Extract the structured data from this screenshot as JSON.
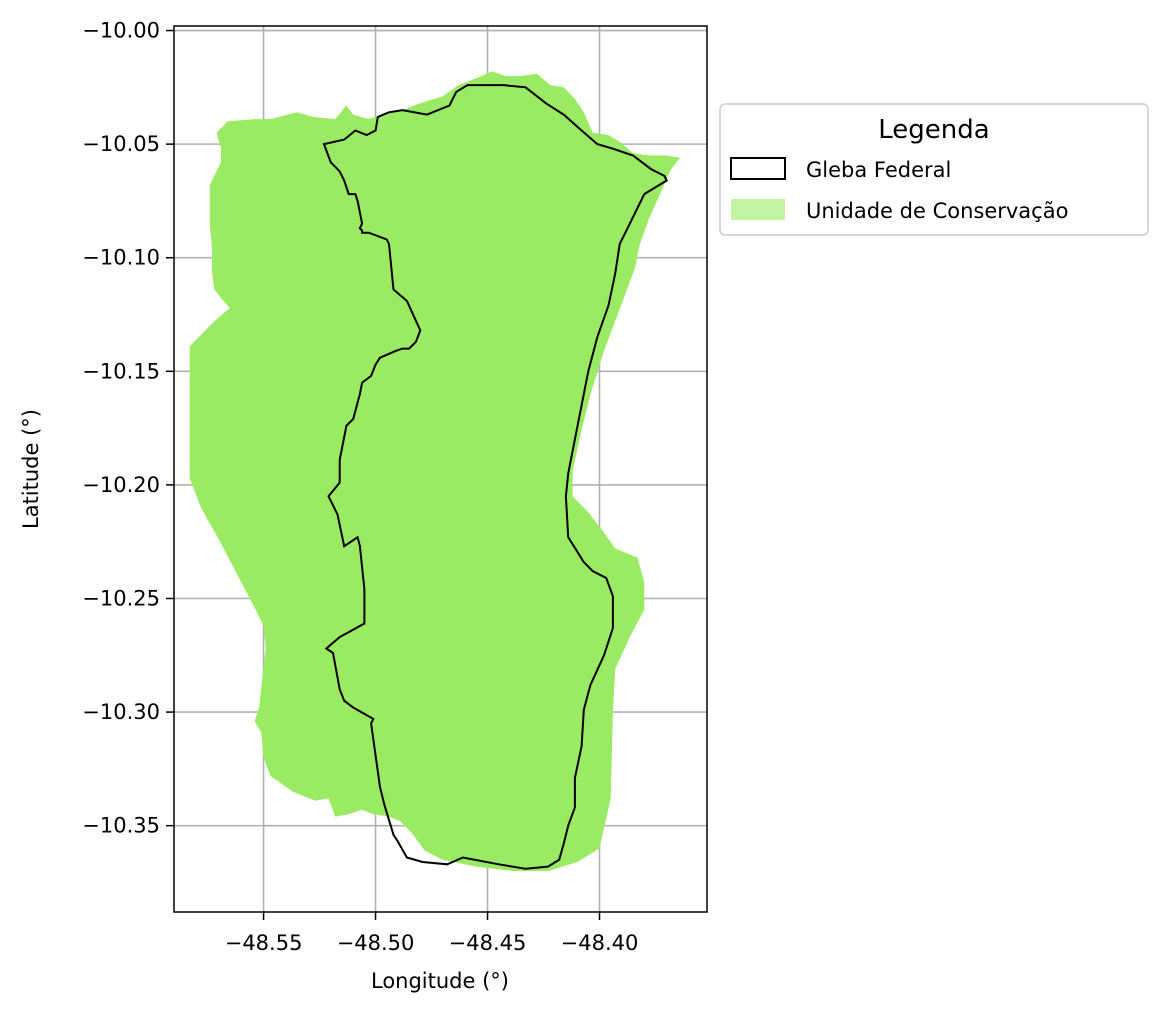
{
  "map": {
    "xlabel": "Longitude (°)",
    "ylabel": "Latitude (°)",
    "xlim": [
      -48.59,
      -48.352
    ],
    "ylim": [
      -10.388,
      -9.998
    ],
    "grid": true,
    "x_ticks": [
      -48.55,
      -48.5,
      -48.45,
      -48.4
    ],
    "x_tick_labels": [
      "−48.55",
      "−48.50",
      "−48.45",
      "−48.40"
    ],
    "y_ticks": [
      -10.0,
      -10.05,
      -10.1,
      -10.15,
      -10.2,
      -10.25,
      -10.3,
      -10.35
    ],
    "y_tick_labels": [
      "−10.00",
      "−10.05",
      "−10.10",
      "−10.15",
      "−10.20",
      "−10.25",
      "−10.30",
      "−10.35"
    ],
    "legend": {
      "title": "Legenda",
      "placement": "outside-right-top",
      "items": [
        {
          "label": "Gleba Federal",
          "style": "outline",
          "color": "#000000"
        },
        {
          "label": "Unidade de Conservação",
          "style": "fill",
          "color": "#9aeb63"
        }
      ]
    },
    "layers": {
      "conservation_unit": {
        "fill_color": "#9aeb63",
        "coords": [
          [
            -48.571,
            -10.045
          ],
          [
            -48.566,
            -10.04
          ],
          [
            -48.554,
            -10.039
          ],
          [
            -48.547,
            -10.039
          ],
          [
            -48.535,
            -10.036
          ],
          [
            -48.528,
            -10.038
          ],
          [
            -48.518,
            -10.039
          ],
          [
            -48.513,
            -10.033
          ],
          [
            -48.51,
            -10.037
          ],
          [
            -48.503,
            -10.039
          ],
          [
            -48.494,
            -10.036
          ],
          [
            -48.488,
            -10.035
          ],
          [
            -48.48,
            -10.032
          ],
          [
            -48.47,
            -10.029
          ],
          [
            -48.463,
            -10.024
          ],
          [
            -48.455,
            -10.021
          ],
          [
            -48.448,
            -10.018
          ],
          [
            -48.442,
            -10.02
          ],
          [
            -48.435,
            -10.02
          ],
          [
            -48.428,
            -10.019
          ],
          [
            -48.422,
            -10.024
          ],
          [
            -48.416,
            -10.025
          ],
          [
            -48.411,
            -10.03
          ],
          [
            -48.407,
            -10.036
          ],
          [
            -48.403,
            -10.045
          ],
          [
            -48.396,
            -10.046
          ],
          [
            -48.391,
            -10.049
          ],
          [
            -48.385,
            -10.054
          ],
          [
            -48.378,
            -10.055
          ],
          [
            -48.37,
            -10.055
          ],
          [
            -48.364,
            -10.056
          ],
          [
            -48.368,
            -10.061
          ],
          [
            -48.373,
            -10.072
          ],
          [
            -48.378,
            -10.083
          ],
          [
            -48.382,
            -10.094
          ],
          [
            -48.384,
            -10.104
          ],
          [
            -48.39,
            -10.12
          ],
          [
            -48.398,
            -10.141
          ],
          [
            -48.404,
            -10.16
          ],
          [
            -48.408,
            -10.176
          ],
          [
            -48.412,
            -10.194
          ],
          [
            -48.412,
            -10.205
          ],
          [
            -48.405,
            -10.212
          ],
          [
            -48.398,
            -10.221
          ],
          [
            -48.393,
            -10.228
          ],
          [
            -48.383,
            -10.232
          ],
          [
            -48.38,
            -10.243
          ],
          [
            -48.38,
            -10.255
          ],
          [
            -48.386,
            -10.266
          ],
          [
            -48.393,
            -10.281
          ],
          [
            -48.394,
            -10.3
          ],
          [
            -48.395,
            -10.338
          ],
          [
            -48.4,
            -10.36
          ],
          [
            -48.41,
            -10.366
          ],
          [
            -48.423,
            -10.37
          ],
          [
            -48.438,
            -10.37
          ],
          [
            -48.455,
            -10.368
          ],
          [
            -48.47,
            -10.365
          ],
          [
            -48.478,
            -10.361
          ],
          [
            -48.484,
            -10.353
          ],
          [
            -48.489,
            -10.348
          ],
          [
            -48.494,
            -10.346
          ],
          [
            -48.501,
            -10.345
          ],
          [
            -48.506,
            -10.343
          ],
          [
            -48.512,
            -10.345
          ],
          [
            -48.518,
            -10.346
          ],
          [
            -48.521,
            -10.338
          ],
          [
            -48.527,
            -10.339
          ],
          [
            -48.537,
            -10.335
          ],
          [
            -48.547,
            -10.328
          ],
          [
            -48.55,
            -10.32
          ],
          [
            -48.551,
            -10.309
          ],
          [
            -48.554,
            -10.304
          ],
          [
            -48.552,
            -10.298
          ],
          [
            -48.55,
            -10.28
          ],
          [
            -48.549,
            -10.272
          ],
          [
            -48.55,
            -10.262
          ],
          [
            -48.554,
            -10.254
          ],
          [
            -48.562,
            -10.239
          ],
          [
            -48.57,
            -10.224
          ],
          [
            -48.578,
            -10.21
          ],
          [
            -48.583,
            -10.197
          ],
          [
            -48.583,
            -10.188
          ],
          [
            -48.583,
            -10.168
          ],
          [
            -48.583,
            -10.139
          ],
          [
            -48.572,
            -10.128
          ],
          [
            -48.565,
            -10.122
          ],
          [
            -48.568,
            -10.119
          ],
          [
            -48.572,
            -10.114
          ],
          [
            -48.573,
            -10.107
          ],
          [
            -48.573,
            -10.096
          ],
          [
            -48.574,
            -10.086
          ],
          [
            -48.574,
            -10.077
          ],
          [
            -48.574,
            -10.068
          ],
          [
            -48.572,
            -10.064
          ],
          [
            -48.569,
            -10.058
          ],
          [
            -48.569,
            -10.052
          ]
        ]
      },
      "gleba_federal": {
        "stroke_color": "#000000",
        "coords": [
          [
            -48.514,
            -10.048
          ],
          [
            -48.509,
            -10.044
          ],
          [
            -48.504,
            -10.046
          ],
          [
            -48.5,
            -10.044
          ],
          [
            -48.499,
            -10.038
          ],
          [
            -48.494,
            -10.036
          ],
          [
            -48.488,
            -10.035
          ],
          [
            -48.477,
            -10.037
          ],
          [
            -48.467,
            -10.033
          ],
          [
            -48.464,
            -10.027
          ],
          [
            -48.459,
            -10.024
          ],
          [
            -48.451,
            -10.024
          ],
          [
            -48.443,
            -10.024
          ],
          [
            -48.433,
            -10.025
          ],
          [
            -48.424,
            -10.032
          ],
          [
            -48.416,
            -10.037
          ],
          [
            -48.408,
            -10.044
          ],
          [
            -48.401,
            -10.05
          ],
          [
            -48.394,
            -10.052
          ],
          [
            -48.385,
            -10.055
          ],
          [
            -48.377,
            -10.061
          ],
          [
            -48.371,
            -10.064
          ],
          [
            -48.37,
            -10.066
          ],
          [
            -48.38,
            -10.072
          ],
          [
            -48.386,
            -10.084
          ],
          [
            -48.391,
            -10.094
          ],
          [
            -48.393,
            -10.107
          ],
          [
            -48.396,
            -10.121
          ],
          [
            -48.401,
            -10.135
          ],
          [
            -48.405,
            -10.15
          ],
          [
            -48.41,
            -10.175
          ],
          [
            -48.414,
            -10.195
          ],
          [
            -48.415,
            -10.205
          ],
          [
            -48.414,
            -10.223
          ],
          [
            -48.407,
            -10.234
          ],
          [
            -48.403,
            -10.238
          ],
          [
            -48.397,
            -10.241
          ],
          [
            -48.394,
            -10.249
          ],
          [
            -48.394,
            -10.263
          ],
          [
            -48.398,
            -10.275
          ],
          [
            -48.404,
            -10.288
          ],
          [
            -48.407,
            -10.299
          ],
          [
            -48.408,
            -10.315
          ],
          [
            -48.411,
            -10.329
          ],
          [
            -48.411,
            -10.342
          ],
          [
            -48.414,
            -10.35
          ],
          [
            -48.416,
            -10.358
          ],
          [
            -48.418,
            -10.365
          ],
          [
            -48.423,
            -10.368
          ],
          [
            -48.433,
            -10.369
          ],
          [
            -48.445,
            -10.367
          ],
          [
            -48.461,
            -10.364
          ],
          [
            -48.468,
            -10.367
          ],
          [
            -48.479,
            -10.366
          ],
          [
            -48.486,
            -10.364
          ],
          [
            -48.49,
            -10.357
          ],
          [
            -48.492,
            -10.354
          ],
          [
            -48.496,
            -10.341
          ],
          [
            -48.498,
            -10.333
          ],
          [
            -48.502,
            -10.305
          ],
          [
            -48.501,
            -10.303
          ],
          [
            -48.51,
            -10.298
          ],
          [
            -48.514,
            -10.295
          ],
          [
            -48.516,
            -10.29
          ],
          [
            -48.519,
            -10.274
          ],
          [
            -48.522,
            -10.272
          ],
          [
            -48.516,
            -10.267
          ],
          [
            -48.505,
            -10.261
          ],
          [
            -48.505,
            -10.246
          ],
          [
            -48.507,
            -10.227
          ],
          [
            -48.508,
            -10.223
          ],
          [
            -48.514,
            -10.227
          ],
          [
            -48.517,
            -10.213
          ],
          [
            -48.521,
            -10.205
          ],
          [
            -48.516,
            -10.199
          ],
          [
            -48.516,
            -10.189
          ],
          [
            -48.513,
            -10.174
          ],
          [
            -48.51,
            -10.171
          ],
          [
            -48.507,
            -10.16
          ],
          [
            -48.506,
            -10.155
          ],
          [
            -48.502,
            -10.152
          ],
          [
            -48.5,
            -10.147
          ],
          [
            -48.498,
            -10.144
          ],
          [
            -48.491,
            -10.141
          ],
          [
            -48.488,
            -10.14
          ],
          [
            -48.485,
            -10.14
          ],
          [
            -48.482,
            -10.137
          ],
          [
            -48.48,
            -10.132
          ],
          [
            -48.486,
            -10.119
          ],
          [
            -48.492,
            -10.114
          ],
          [
            -48.494,
            -10.094
          ],
          [
            -48.495,
            -10.092
          ],
          [
            -48.503,
            -10.089
          ],
          [
            -48.506,
            -10.089
          ],
          [
            -48.506,
            -10.088
          ],
          [
            -48.507,
            -10.087
          ],
          [
            -48.506,
            -10.085
          ],
          [
            -48.508,
            -10.075
          ],
          [
            -48.509,
            -10.072
          ],
          [
            -48.512,
            -10.072
          ],
          [
            -48.514,
            -10.066
          ],
          [
            -48.516,
            -10.062
          ],
          [
            -48.52,
            -10.058
          ],
          [
            -48.523,
            -10.05
          ]
        ]
      }
    }
  }
}
